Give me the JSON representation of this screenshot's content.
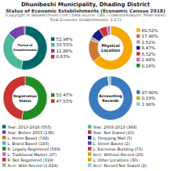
{
  "chart_data": {
    "type": "pie",
    "title": "Dhunibeshi Municipality, Dhading District",
    "subtitle": "Status of Economic Establishments (Economic Census 2018)",
    "annotations": [
      "(Copyright © NepalArchives.Com | Data Source: CBS | Creation/Analysis: Milan Karki)",
      "Total Economic Establishments: 1,673"
    ],
    "data_labels": true,
    "series": [
      {
        "name": "Period of\nEstablishment",
        "values": [
          52.96,
          33.55,
          12.86,
          0.63
        ],
        "colors": [
          "#006868",
          "#4db89a",
          "#7744aa",
          "#bb3333"
        ],
        "value_labels": [
          "52.96%",
          "33.55%",
          "12.86%",
          "0.63%"
        ]
      },
      {
        "name": "Physical\nLocation",
        "values": [
          69.52,
          17.98,
          2.52,
          8.47,
          6.52,
          2.88,
          0.18
        ],
        "colors": [
          "#f5a800",
          "#cc7733",
          "#aaaaaa",
          "#1a1a80",
          "#cc3333",
          "#cc66cc",
          "#228b22"
        ],
        "value_labels": [
          "69.52%",
          "17.98%",
          "2.52%",
          "8.47%",
          "6.52%",
          "2.88%",
          "0.18%"
        ]
      },
      {
        "name": "Registration\nStatus",
        "values": [
          52.47,
          47.53
        ],
        "colors": [
          "#228b22",
          "#cc3333"
        ],
        "value_labels": [
          "52.47%",
          "47.53%"
        ]
      },
      {
        "name": "Accounting\nRecords",
        "values": [
          97.9,
          0.19,
          1.9
        ],
        "colors": [
          "#3a7abf",
          "#ccaa00",
          "#88ccee"
        ],
        "value_labels": [
          "97.90%",
          "0.19%",
          "1.90%"
        ]
      }
    ],
    "legend_entries": [
      {
        "color": "#006868",
        "name": "Year: 2013-2018 (555)"
      },
      {
        "color": "#4db89a",
        "name": "Year: 2003-2013 (368)"
      },
      {
        "color": "#7744aa",
        "name": "Year: Before 2003 (138)"
      },
      {
        "color": "#bb3333",
        "name": "Year: Not Stated (10)"
      },
      {
        "color": "#cc7733",
        "name": "L: Home Based (748)"
      },
      {
        "color": "#1a1a80",
        "name": "L: Shopping Mall (5)"
      },
      {
        "color": "#4db89a",
        "name": "L: Brand Based (193)"
      },
      {
        "color": "#3355aa",
        "name": "L: Street Based (2)"
      },
      {
        "color": "#228b22",
        "name": "R: Legally Registered (583)"
      },
      {
        "color": "#cc3333",
        "name": "L: Exclusive Building (73)"
      },
      {
        "color": "#cc66cc",
        "name": "L: Traditional Market (27)"
      },
      {
        "color": "#ccaa00",
        "name": "Acct: Without Record (20)"
      },
      {
        "color": "#cc3333",
        "name": "R: Not Registered (319)"
      },
      {
        "color": "#ccaa00",
        "name": "L: Other Locations (30)"
      },
      {
        "color": "#aaaaaa",
        "name": "Acct: With Record (1,829)"
      },
      {
        "color": "#88ccee",
        "name": "Acct: Record Not Stated (2)"
      }
    ]
  }
}
